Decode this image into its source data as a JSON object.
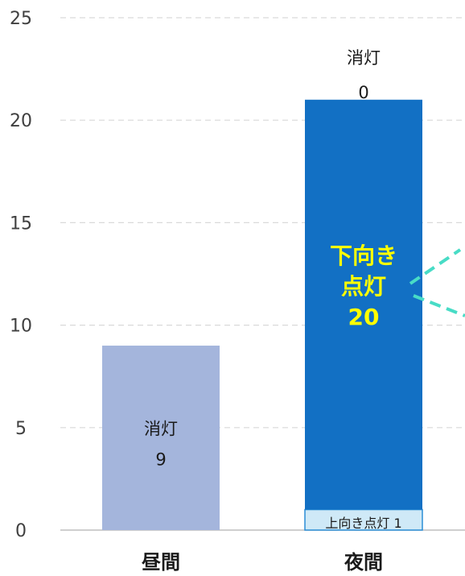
{
  "chart_data": {
    "type": "bar",
    "stacked": true,
    "categories": [
      "昼間",
      "夜間"
    ],
    "ylim": [
      0,
      25
    ],
    "yticks": [
      0,
      5,
      10,
      15,
      20,
      25
    ],
    "grid": true,
    "series": [
      {
        "name": "上向き点灯",
        "values": [
          0,
          1
        ],
        "color": "#cfe9f7",
        "labels": [
          null,
          "上向き点灯 1"
        ]
      },
      {
        "name": "下向き点灯",
        "values": [
          0,
          20
        ],
        "color": "#1270c4",
        "labels": [
          null,
          [
            "下向き",
            "点灯",
            "20"
          ]
        ],
        "label_color": "#ffff00"
      },
      {
        "name": "消灯",
        "values": [
          9,
          0
        ],
        "color": "#a4b5dc",
        "labels": [
          [
            "消灯",
            "9"
          ],
          [
            "消灯",
            "0"
          ]
        ]
      }
    ],
    "annotation_line_color": "#48dcc6"
  }
}
